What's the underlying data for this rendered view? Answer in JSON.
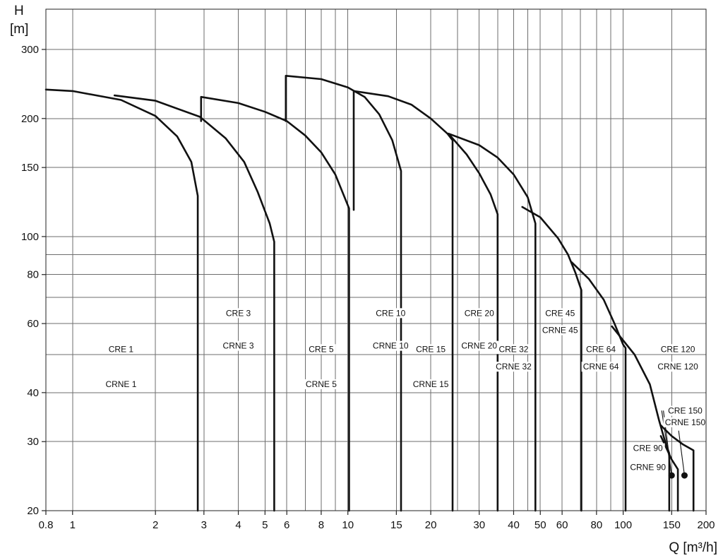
{
  "chart_data": {
    "type": "line",
    "title": "",
    "xlabel": "Q [m³/h]",
    "ylabel_top": "H",
    "ylabel_unit": "[m]",
    "x_scale": "log",
    "y_scale": "log",
    "xlim": [
      0.8,
      200
    ],
    "ylim": [
      20,
      380
    ],
    "grid": true,
    "x_ticks": [
      {
        "v": 0.8,
        "label": "0.8"
      },
      {
        "v": 1,
        "label": "1"
      },
      {
        "v": 2,
        "label": "2"
      },
      {
        "v": 3,
        "label": "3"
      },
      {
        "v": 4,
        "label": "4"
      },
      {
        "v": 5,
        "label": "5"
      },
      {
        "v": 6,
        "label": "6"
      },
      {
        "v": 8,
        "label": "8"
      },
      {
        "v": 10,
        "label": "10"
      },
      {
        "v": 15,
        "label": "15"
      },
      {
        "v": 20,
        "label": "20"
      },
      {
        "v": 30,
        "label": "30"
      },
      {
        "v": 40,
        "label": "40"
      },
      {
        "v": 50,
        "label": "50"
      },
      {
        "v": 60,
        "label": "60"
      },
      {
        "v": 80,
        "label": "80"
      },
      {
        "v": 100,
        "label": "100"
      },
      {
        "v": 150,
        "label": "150"
      },
      {
        "v": 200,
        "label": "200"
      }
    ],
    "y_ticks": [
      {
        "v": 20,
        "label": "20"
      },
      {
        "v": 30,
        "label": "30"
      },
      {
        "v": 40,
        "label": "40"
      },
      {
        "v": 60,
        "label": "60"
      },
      {
        "v": 80,
        "label": "80"
      },
      {
        "v": 100,
        "label": "100"
      },
      {
        "v": 150,
        "label": "150"
      },
      {
        "v": 200,
        "label": "200"
      },
      {
        "v": 300,
        "label": "300"
      }
    ],
    "x_minor_grid": [
      7,
      9,
      25,
      35,
      45,
      70,
      90
    ],
    "y_minor_grid": [
      50,
      70,
      90
    ],
    "series": [
      {
        "name": "CRE 1 / CRNE 1",
        "points": [
          [
            0.8,
            237
          ],
          [
            1.0,
            235
          ],
          [
            1.5,
            223
          ],
          [
            2.0,
            203
          ],
          [
            2.4,
            180
          ],
          [
            2.7,
            155
          ],
          [
            2.85,
            127
          ],
          [
            2.85,
            20
          ]
        ]
      },
      {
        "name": "CRE 3 / CRNE 3",
        "points": [
          [
            1.42,
            229
          ],
          [
            2.0,
            222
          ],
          [
            2.9,
            202
          ],
          [
            3.6,
            178
          ],
          [
            4.2,
            155
          ],
          [
            4.7,
            130
          ],
          [
            5.2,
            108
          ],
          [
            5.4,
            97
          ],
          [
            5.4,
            20
          ]
        ]
      },
      {
        "name": "CRE 5 / CRNE 5",
        "points": [
          [
            2.93,
            197
          ],
          [
            2.93,
            227
          ],
          [
            4.0,
            219
          ],
          [
            5.0,
            208
          ],
          [
            6.0,
            197
          ],
          [
            7.0,
            181
          ],
          [
            8.0,
            164
          ],
          [
            9.0,
            144
          ],
          [
            10.1,
            118
          ],
          [
            10.1,
            20
          ]
        ]
      },
      {
        "name": "CRE 10 / CRNE 10",
        "points": [
          [
            5.95,
            197
          ],
          [
            5.95,
            257
          ],
          [
            8.0,
            252
          ],
          [
            10.0,
            240
          ],
          [
            11.5,
            227
          ],
          [
            13.0,
            205
          ],
          [
            14.5,
            176
          ],
          [
            15.6,
            147
          ],
          [
            15.6,
            20
          ]
        ]
      },
      {
        "name": "CRE 15 / CRNE 15",
        "points": [
          [
            10.5,
            117
          ],
          [
            10.5,
            235
          ],
          [
            14.0,
            228
          ],
          [
            17.0,
            217
          ],
          [
            20.0,
            200
          ],
          [
            23.0,
            183
          ],
          [
            24.0,
            176
          ],
          [
            24.0,
            20
          ]
        ]
      },
      {
        "name": "CRE 20 / CRNE 20",
        "points": [
          [
            23.2,
            183
          ],
          [
            27.0,
            162
          ],
          [
            30.0,
            145
          ],
          [
            33.0,
            128
          ],
          [
            35.0,
            114
          ],
          [
            35.0,
            20
          ]
        ]
      },
      {
        "name": "CRE 32 / CRNE 32",
        "points": [
          [
            23.2,
            183
          ],
          [
            30.0,
            171
          ],
          [
            35.0,
            159
          ],
          [
            40.0,
            144
          ],
          [
            45.0,
            126
          ],
          [
            48.0,
            108
          ],
          [
            48.0,
            20
          ]
        ]
      },
      {
        "name": "CRE 45 / CRNE 45",
        "points": [
          [
            43.0,
            119
          ],
          [
            50.0,
            112
          ],
          [
            58.0,
            99
          ],
          [
            63.0,
            90
          ],
          [
            67.0,
            81
          ],
          [
            70.5,
            73
          ],
          [
            70.5,
            20
          ]
        ]
      },
      {
        "name": "CRE 64 / CRNE 64",
        "points": [
          [
            65.0,
            86
          ],
          [
            75.0,
            78
          ],
          [
            85.0,
            69
          ],
          [
            93.0,
            60
          ],
          [
            100.0,
            53
          ],
          [
            102.0,
            52
          ],
          [
            102.0,
            20
          ]
        ]
      },
      {
        "name": "CRE 90 / CRNE 90",
        "points": [
          [
            91.0,
            59
          ],
          [
            110.0,
            50
          ],
          [
            125.0,
            42
          ],
          [
            135.0,
            34
          ],
          [
            142.0,
            30
          ],
          [
            147.0,
            28
          ],
          [
            147.0,
            20
          ]
        ]
      },
      {
        "name": "CRE 120 / CRNE 120",
        "points": [
          [
            137.0,
            31
          ],
          [
            150.0,
            27
          ],
          [
            158.0,
            25.5
          ],
          [
            158.0,
            20
          ]
        ]
      },
      {
        "name": "CRE 150 / CRNE 150",
        "points": [
          [
            137.0,
            33
          ],
          [
            150.0,
            31
          ],
          [
            165.0,
            29.5
          ],
          [
            180.0,
            28.5
          ],
          [
            180.0,
            20
          ]
        ]
      }
    ],
    "labels": [
      {
        "text": "CRE 1",
        "x": 1.5,
        "y": 51
      },
      {
        "text": "CRNE 1",
        "x": 1.5,
        "y": 41.5
      },
      {
        "text": "CRE 3",
        "x": 4.0,
        "y": 63
      },
      {
        "text": "CRNE 3",
        "x": 4.0,
        "y": 52
      },
      {
        "text": "CRE 5",
        "x": 8.0,
        "y": 51
      },
      {
        "text": "CRNE 5",
        "x": 8.0,
        "y": 41.5
      },
      {
        "text": "CRE 10",
        "x": 14.3,
        "y": 63
      },
      {
        "text": "CRNE 10",
        "x": 14.3,
        "y": 52
      },
      {
        "text": "CRE 15",
        "x": 20.0,
        "y": 51
      },
      {
        "text": "CRNE 15",
        "x": 20.0,
        "y": 41.5
      },
      {
        "text": "CRE 20",
        "x": 30.0,
        "y": 63
      },
      {
        "text": "CRNE 20",
        "x": 30.0,
        "y": 52
      },
      {
        "text": "CRE 32",
        "x": 40.0,
        "y": 51
      },
      {
        "text": "CRNE 32",
        "x": 40.0,
        "y": 46
      },
      {
        "text": "CRE 45",
        "x": 59.0,
        "y": 63
      },
      {
        "text": "CRNE 45",
        "x": 59.0,
        "y": 57
      },
      {
        "text": "CRE 64",
        "x": 83.0,
        "y": 51
      },
      {
        "text": "CRNE 64",
        "x": 83.0,
        "y": 46
      },
      {
        "text": "CRE 120",
        "x": 158.0,
        "y": 51
      },
      {
        "text": "CRNE 120",
        "x": 158.0,
        "y": 46
      },
      {
        "text": "CRE 150",
        "x": 168.0,
        "y": 35.5
      },
      {
        "text": "CRNE 150",
        "x": 168.0,
        "y": 33.2
      },
      {
        "text": "CRE 90",
        "x": 123.0,
        "y": 28.5
      },
      {
        "text": "CRNE 90",
        "x": 123.0,
        "y": 25.5
      }
    ],
    "markers": [
      {
        "x": 150,
        "y": 24.6
      },
      {
        "x": 167,
        "y": 24.6
      }
    ],
    "leaders": [
      {
        "from": [
          138,
          36
        ],
        "to": [
          150,
          24.6
        ]
      },
      {
        "from": [
          140,
          36
        ],
        "to": [
          150,
          24.6
        ]
      },
      {
        "from": [
          159,
          32
        ],
        "to": [
          167,
          24.6
        ]
      }
    ]
  }
}
